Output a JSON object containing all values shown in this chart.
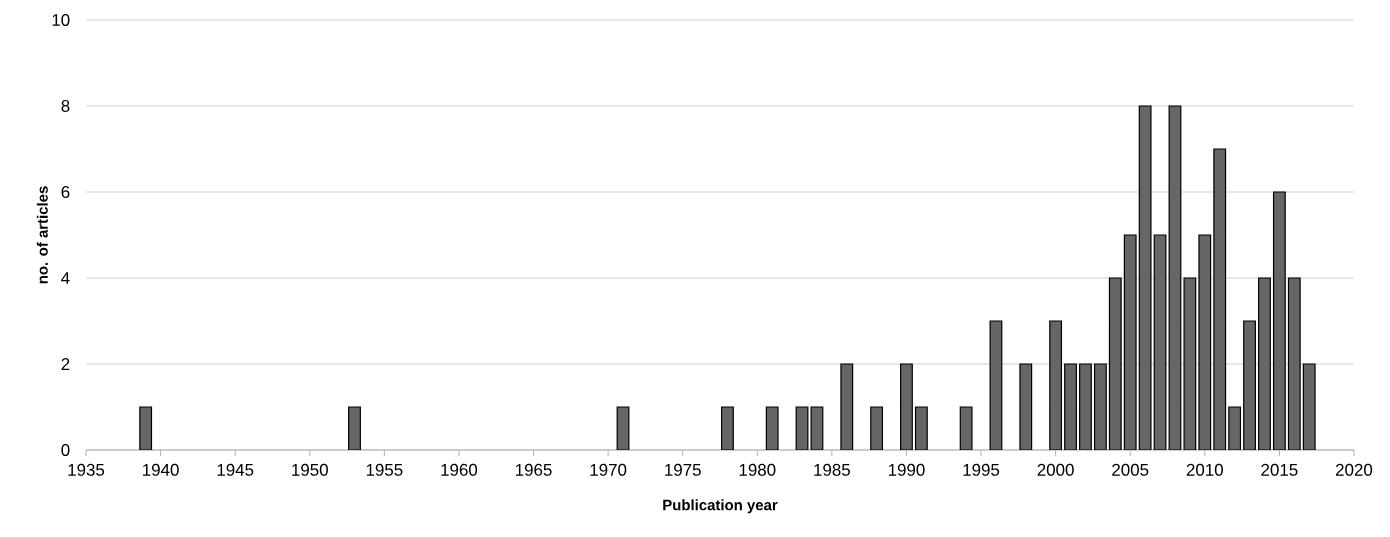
{
  "chart_data": {
    "type": "bar",
    "xlabel": "Publication year",
    "ylabel": "no. of articles",
    "x": [
      1939,
      1953,
      1971,
      1978,
      1981,
      1983,
      1984,
      1986,
      1988,
      1990,
      1991,
      1994,
      1996,
      1998,
      2000,
      2001,
      2002,
      2003,
      2004,
      2005,
      2006,
      2007,
      2008,
      2009,
      2010,
      2011,
      2012,
      2013,
      2014,
      2015,
      2016,
      2017
    ],
    "values": [
      1,
      1,
      1,
      1,
      1,
      1,
      1,
      2,
      1,
      2,
      1,
      1,
      3,
      2,
      3,
      2,
      2,
      2,
      4,
      5,
      8,
      5,
      8,
      4,
      5,
      7,
      1,
      3,
      4,
      6,
      4,
      2
    ],
    "color": "#666666",
    "xlim": [
      1935,
      2020
    ],
    "xticks": [
      1935,
      1940,
      1945,
      1950,
      1955,
      1960,
      1965,
      1970,
      1975,
      1980,
      1985,
      1990,
      1995,
      2000,
      2005,
      2010,
      2015,
      2020
    ],
    "ylim": [
      0,
      10
    ],
    "yticks": [
      0,
      2,
      4,
      6,
      8,
      10
    ],
    "grid": "y"
  }
}
